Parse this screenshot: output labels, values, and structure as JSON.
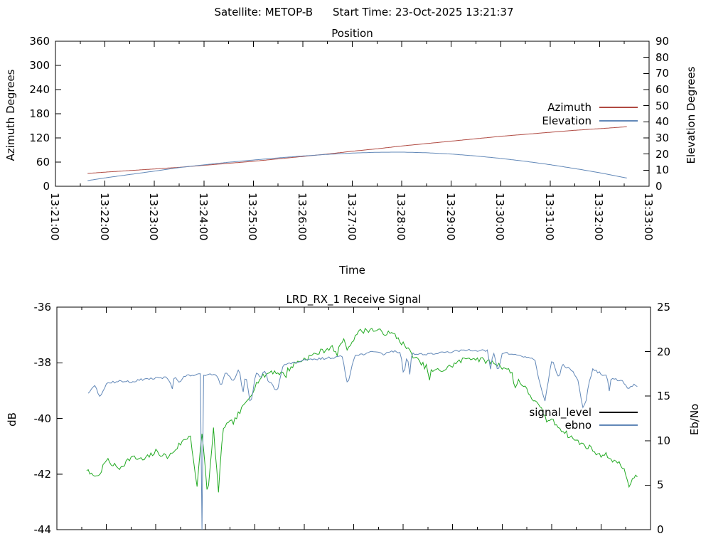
{
  "page": {
    "satellite_label": "Satellite: METOP-B",
    "start_time_label": "Start Time: 23-Oct-2025 13:21:37"
  },
  "colors": {
    "axis": "#000000",
    "azimuth_red": "#b04a42",
    "steel_blue": "#6288b8",
    "signal_green": "#22aa22",
    "legend_black": "#000000"
  },
  "chart_data": [
    {
      "type": "line",
      "title": "Position",
      "xlabel": "Time",
      "ylabel_left": "Azimuth Degrees",
      "ylabel_right": "Elevation Degrees",
      "x_start": "13:21:00",
      "x_end": "13:33:00",
      "x_major_ticks": [
        "13:21:00",
        "13:22:00",
        "13:23:00",
        "13:24:00",
        "13:25:00",
        "13:26:00",
        "13:27:00",
        "13:28:00",
        "13:29:00",
        "13:30:00",
        "13:31:00",
        "13:32:00",
        "13:33:00"
      ],
      "x_minor_interval_sec": 30,
      "show_x_labels": true,
      "grid": false,
      "legend_position": "inside-right",
      "y_left": {
        "min": 0,
        "max": 360,
        "ticks": [
          0,
          60,
          120,
          180,
          240,
          300,
          360
        ]
      },
      "y_right": {
        "min": 0,
        "max": 90,
        "ticks": [
          0,
          10,
          20,
          30,
          40,
          50,
          60,
          70,
          80,
          90
        ]
      },
      "legend": [
        {
          "label": "Azimuth",
          "color": "#b04a42"
        },
        {
          "label": "Elevation",
          "color": "#6288b8"
        }
      ],
      "series": [
        {
          "name": "Azimuth",
          "axis": "left",
          "color": "#b04a42",
          "noise": 0,
          "points": [
            [
              "13:21:39",
              32
            ],
            [
              "13:22:00",
              35
            ],
            [
              "13:22:30",
              39
            ],
            [
              "13:23:00",
              43
            ],
            [
              "13:23:30",
              47
            ],
            [
              "13:24:00",
              52
            ],
            [
              "13:24:30",
              57
            ],
            [
              "13:25:00",
              62
            ],
            [
              "13:25:30",
              68
            ],
            [
              "13:26:00",
              74
            ],
            [
              "13:26:30",
              80
            ],
            [
              "13:27:00",
              87
            ],
            [
              "13:27:30",
              93
            ],
            [
              "13:28:00",
              100
            ],
            [
              "13:28:30",
              106
            ],
            [
              "13:29:00",
              112
            ],
            [
              "13:29:30",
              118
            ],
            [
              "13:30:00",
              124
            ],
            [
              "13:30:30",
              129
            ],
            [
              "13:31:00",
              134
            ],
            [
              "13:31:30",
              139
            ],
            [
              "13:32:00",
              143
            ],
            [
              "13:32:34",
              148
            ]
          ]
        },
        {
          "name": "Elevation",
          "axis": "right",
          "color": "#6288b8",
          "noise": 0,
          "points": [
            [
              "13:21:39",
              3.5
            ],
            [
              "13:22:00",
              5.2
            ],
            [
              "13:22:30",
              7.3
            ],
            [
              "13:23:00",
              9.4
            ],
            [
              "13:23:30",
              11.6
            ],
            [
              "13:24:00",
              13.3
            ],
            [
              "13:24:30",
              14.9
            ],
            [
              "13:25:00",
              16.3
            ],
            [
              "13:25:30",
              17.6
            ],
            [
              "13:26:00",
              18.8
            ],
            [
              "13:26:30",
              19.8
            ],
            [
              "13:27:00",
              20.6
            ],
            [
              "13:27:30",
              21.1
            ],
            [
              "13:28:00",
              21.2
            ],
            [
              "13:28:30",
              20.8
            ],
            [
              "13:29:00",
              20.0
            ],
            [
              "13:29:30",
              18.8
            ],
            [
              "13:30:00",
              17.3
            ],
            [
              "13:30:30",
              15.5
            ],
            [
              "13:31:00",
              13.4
            ],
            [
              "13:31:30",
              11.0
            ],
            [
              "13:32:00",
              8.4
            ],
            [
              "13:32:34",
              5.0
            ]
          ]
        }
      ]
    },
    {
      "type": "line",
      "title": "LRD_RX_1 Receive Signal",
      "xlabel": "",
      "ylabel_left": "dB",
      "ylabel_right": "Eb/No",
      "x_start": "13:21:00",
      "x_end": "13:33:00",
      "x_major_ticks": [
        "13:21:00",
        "13:22:00",
        "13:23:00",
        "13:24:00",
        "13:25:00",
        "13:26:00",
        "13:27:00",
        "13:28:00",
        "13:29:00",
        "13:30:00",
        "13:31:00",
        "13:32:00",
        "13:33:00"
      ],
      "x_minor_interval_sec": 30,
      "show_x_labels": false,
      "grid": false,
      "legend_position": "inside-right",
      "y_left": {
        "min": -44,
        "max": -36,
        "ticks": [
          -36,
          -38,
          -40,
          -42,
          -44
        ]
      },
      "y_right": {
        "min": 0,
        "max": 25,
        "ticks": [
          0,
          5,
          10,
          15,
          20,
          25
        ]
      },
      "legend": [
        {
          "label": "signal_level",
          "color": "#000000"
        },
        {
          "label": "ebno",
          "color": "#6288b8"
        }
      ],
      "series": [
        {
          "name": "signal_level",
          "axis": "left",
          "color": "#22aa22",
          "noise": 0.1,
          "seed": 7,
          "spikes": {
            "count": 12,
            "min_depth": 0.15,
            "max_depth": 0.5
          },
          "points": [
            [
              "13:21:36",
              -41.9
            ],
            [
              "13:21:50",
              -42.1
            ],
            [
              "13:22:00",
              -41.5
            ],
            [
              "13:22:15",
              -41.8
            ],
            [
              "13:22:30",
              -41.4
            ],
            [
              "13:22:45",
              -41.5
            ],
            [
              "13:23:00",
              -41.2
            ],
            [
              "13:23:15",
              -41.4
            ],
            [
              "13:23:30",
              -40.9
            ],
            [
              "13:23:42",
              -40.6
            ],
            [
              "13:23:50",
              -42.5
            ],
            [
              "13:23:56",
              -40.5
            ],
            [
              "13:24:03",
              -42.8
            ],
            [
              "13:24:10",
              -40.4
            ],
            [
              "13:24:16",
              -42.2
            ],
            [
              "13:24:22",
              -40.3
            ],
            [
              "13:24:35",
              -40.1
            ],
            [
              "13:24:50",
              -39.4
            ],
            [
              "13:25:05",
              -38.6
            ],
            [
              "13:25:20",
              -38.3
            ],
            [
              "13:25:35",
              -38.4
            ],
            [
              "13:25:50",
              -38.0
            ],
            [
              "13:26:05",
              -37.8
            ],
            [
              "13:26:20",
              -37.6
            ],
            [
              "13:26:35",
              -37.4
            ],
            [
              "13:26:50",
              -37.2
            ],
            [
              "13:27:05",
              -36.9
            ],
            [
              "13:27:20",
              -36.8
            ],
            [
              "13:27:35",
              -36.9
            ],
            [
              "13:27:50",
              -37.0
            ],
            [
              "13:28:05",
              -37.5
            ],
            [
              "13:28:20",
              -38.0
            ],
            [
              "13:28:35",
              -38.3
            ],
            [
              "13:28:50",
              -38.25
            ],
            [
              "13:29:05",
              -38.0
            ],
            [
              "13:29:20",
              -37.8
            ],
            [
              "13:29:35",
              -37.9
            ],
            [
              "13:29:50",
              -38.0
            ],
            [
              "13:30:05",
              -38.2
            ],
            [
              "13:30:20",
              -38.6
            ],
            [
              "13:30:35",
              -39.2
            ],
            [
              "13:30:50",
              -39.8
            ],
            [
              "13:31:05",
              -40.2
            ],
            [
              "13:31:20",
              -40.6
            ],
            [
              "13:31:35",
              -40.9
            ],
            [
              "13:31:50",
              -41.1
            ],
            [
              "13:32:05",
              -41.3
            ],
            [
              "13:32:20",
              -41.6
            ],
            [
              "13:32:45",
              -42.2
            ]
          ]
        },
        {
          "name": "ebno",
          "axis": "right",
          "color": "#6288b8",
          "noise": 0.12,
          "seed": 13,
          "spikes": {
            "count": 26,
            "min_depth": 0.5,
            "max_depth": 2.6
          },
          "points": [
            [
              "13:21:38",
              15.2
            ],
            [
              "13:21:46",
              16.3
            ],
            [
              "13:21:52",
              14.9
            ],
            [
              "13:22:00",
              16.4
            ],
            [
              "13:22:15",
              16.7
            ],
            [
              "13:22:30",
              16.6
            ],
            [
              "13:22:45",
              16.9
            ],
            [
              "13:23:00",
              17.0
            ],
            [
              "13:23:15",
              17.1
            ],
            [
              "13:23:30",
              17.2
            ],
            [
              "13:23:48",
              17.4
            ],
            [
              "13:23:54",
              17.4
            ],
            [
              "13:23:56",
              -0.5
            ],
            [
              "13:23:58",
              17.4
            ],
            [
              "13:24:10",
              17.5
            ],
            [
              "13:24:30",
              17.7
            ],
            [
              "13:24:48",
              17.9
            ],
            [
              "13:24:55",
              14.0
            ],
            [
              "13:25:02",
              18.0
            ],
            [
              "13:25:20",
              18.2
            ],
            [
              "13:25:40",
              18.6
            ],
            [
              "13:26:00",
              19.0
            ],
            [
              "13:26:20",
              19.2
            ],
            [
              "13:26:40",
              19.4
            ],
            [
              "13:27:00",
              19.5
            ],
            [
              "13:27:20",
              19.9
            ],
            [
              "13:27:40",
              20.1
            ],
            [
              "13:28:00",
              19.9
            ],
            [
              "13:28:20",
              19.7
            ],
            [
              "13:28:40",
              19.8
            ],
            [
              "13:29:00",
              20.0
            ],
            [
              "13:29:20",
              20.2
            ],
            [
              "13:29:40",
              20.1
            ],
            [
              "13:30:00",
              19.9
            ],
            [
              "13:30:20",
              19.6
            ],
            [
              "13:30:40",
              19.1
            ],
            [
              "13:30:52",
              14.5
            ],
            [
              "13:31:00",
              18.9
            ],
            [
              "13:31:20",
              18.6
            ],
            [
              "13:31:42",
              15.5
            ],
            [
              "13:31:50",
              18.0
            ],
            [
              "13:32:05",
              17.3
            ],
            [
              "13:32:20",
              16.8
            ],
            [
              "13:32:45",
              16.1
            ]
          ]
        }
      ]
    }
  ]
}
